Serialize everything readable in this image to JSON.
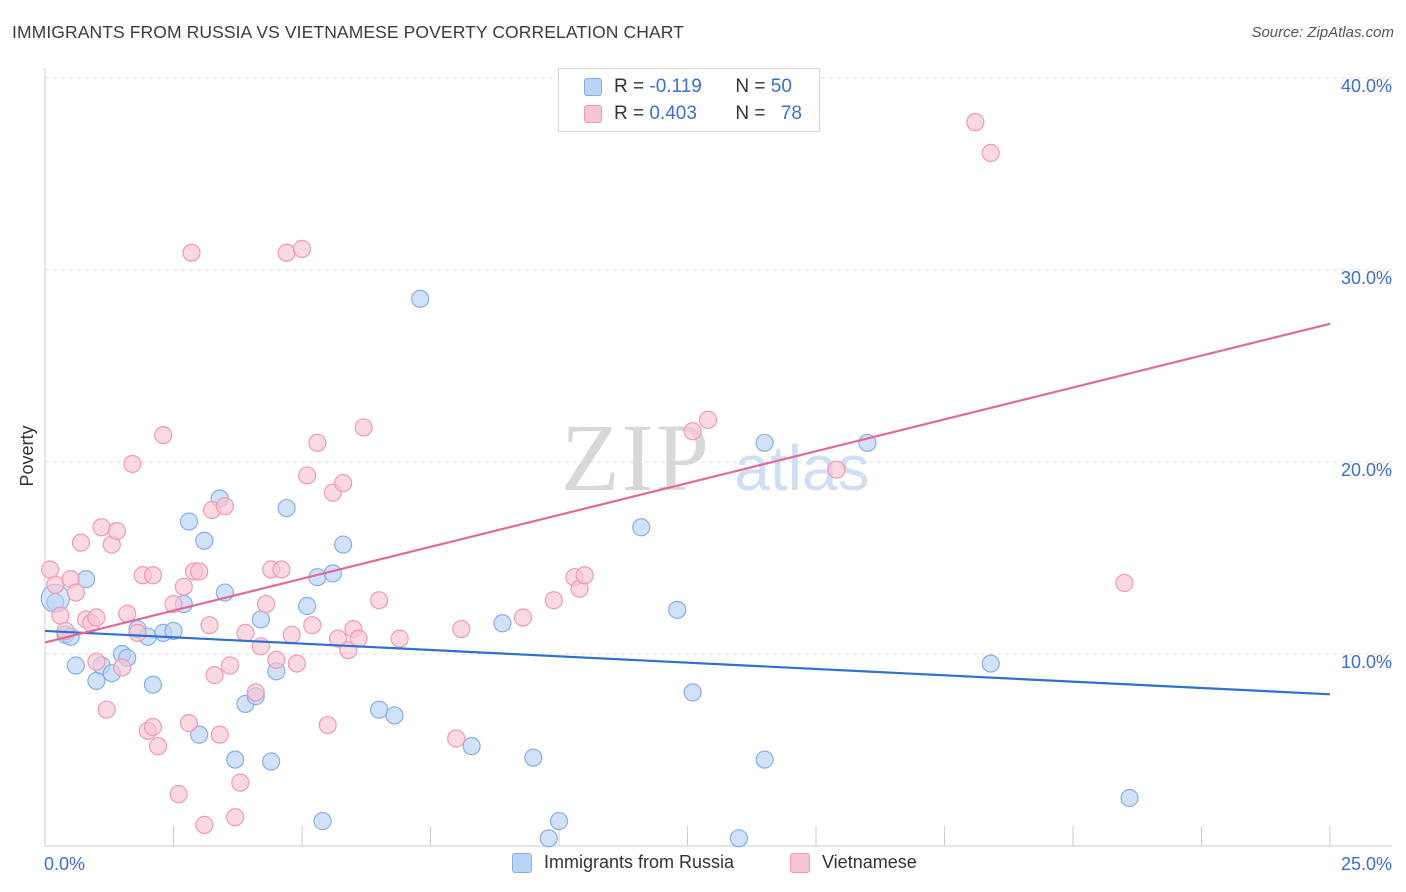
{
  "title": "IMMIGRANTS FROM RUSSIA VS VIETNAMESE POVERTY CORRELATION CHART",
  "source": "Source: ZipAtlas.com",
  "colors": {
    "russia_fill": "#b9d3f5",
    "russia_stroke": "#86aee8",
    "russia_line": "#3070d0",
    "viet_fill": "#f7c4d3",
    "viet_stroke": "#ee9ab4",
    "viet_line": "#e06a94",
    "axis_text": "#3b6fcf",
    "grid": "#dddddd"
  },
  "legend": {
    "rows": [
      {
        "r_label": "R = ",
        "r_value": "-0.119",
        "n_label": "N = ",
        "n_value": "50"
      },
      {
        "r_label": "R = ",
        "r_value": "0.403",
        "n_label": "N = ",
        "n_value": "78"
      }
    ]
  },
  "watermark": {
    "zip": "ZIP",
    "atlas": "atlas"
  },
  "chart_data": {
    "type": "scatter",
    "title": "IMMIGRANTS FROM RUSSIA VS VIETNAMESE POVERTY CORRELATION CHART",
    "xlabel": "",
    "ylabel": "Poverty",
    "xlim": [
      0,
      25
    ],
    "ylim": [
      0,
      40
    ],
    "x_tick_labels": [
      "0.0%",
      "25.0%"
    ],
    "y_ticks": [
      10,
      20,
      30,
      40
    ],
    "y_tick_labels": [
      "10.0%",
      "20.0%",
      "30.0%",
      "40.0%"
    ],
    "grid": true,
    "legend_position": "top-center",
    "series": [
      {
        "name": "Immigrants from Russia",
        "r": -0.119,
        "n": 50,
        "trend": {
          "x": [
            0,
            25
          ],
          "y": [
            11.2,
            7.9
          ]
        },
        "points": [
          [
            0.2,
            12.7
          ],
          [
            0.4,
            11.0
          ],
          [
            0.5,
            10.9
          ],
          [
            0.6,
            9.4
          ],
          [
            0.8,
            13.9
          ],
          [
            1.0,
            8.6
          ],
          [
            1.1,
            9.4
          ],
          [
            1.3,
            9.0
          ],
          [
            1.5,
            10.0
          ],
          [
            1.6,
            9.8
          ],
          [
            1.8,
            11.3
          ],
          [
            2.0,
            10.9
          ],
          [
            2.1,
            8.4
          ],
          [
            2.3,
            11.1
          ],
          [
            2.5,
            11.2
          ],
          [
            2.7,
            12.6
          ],
          [
            2.8,
            16.9
          ],
          [
            3.0,
            5.8
          ],
          [
            3.1,
            15.9
          ],
          [
            3.4,
            18.1
          ],
          [
            3.5,
            13.2
          ],
          [
            3.7,
            4.5
          ],
          [
            3.9,
            7.4
          ],
          [
            4.1,
            7.8
          ],
          [
            4.2,
            11.8
          ],
          [
            4.4,
            4.4
          ],
          [
            4.5,
            9.1
          ],
          [
            4.7,
            17.6
          ],
          [
            5.1,
            12.5
          ],
          [
            5.3,
            14.0
          ],
          [
            5.4,
            1.3
          ],
          [
            5.6,
            14.2
          ],
          [
            5.8,
            15.7
          ],
          [
            6.5,
            7.1
          ],
          [
            6.8,
            6.8
          ],
          [
            7.3,
            28.5
          ],
          [
            8.3,
            5.2
          ],
          [
            8.9,
            11.6
          ],
          [
            9.5,
            4.6
          ],
          [
            9.8,
            0.4
          ],
          [
            10.0,
            1.3
          ],
          [
            11.6,
            16.6
          ],
          [
            12.3,
            12.3
          ],
          [
            12.6,
            8.0
          ],
          [
            13.5,
            0.4
          ],
          [
            14.0,
            21.0
          ],
          [
            14.0,
            4.5
          ],
          [
            16.0,
            21.0
          ],
          [
            18.4,
            9.5
          ],
          [
            21.1,
            2.5
          ]
        ]
      },
      {
        "name": "Vietnamese",
        "r": 0.403,
        "n": 78,
        "trend": {
          "x": [
            0,
            25
          ],
          "y": [
            10.6,
            27.2
          ]
        },
        "points": [
          [
            0.1,
            14.4
          ],
          [
            0.2,
            13.6
          ],
          [
            0.3,
            12.0
          ],
          [
            0.4,
            11.2
          ],
          [
            0.5,
            13.9
          ],
          [
            0.6,
            13.2
          ],
          [
            0.7,
            15.8
          ],
          [
            0.8,
            11.8
          ],
          [
            0.9,
            11.6
          ],
          [
            1.0,
            11.9
          ],
          [
            1.1,
            16.6
          ],
          [
            1.2,
            7.1
          ],
          [
            1.3,
            15.7
          ],
          [
            1.4,
            16.4
          ],
          [
            1.5,
            9.3
          ],
          [
            1.6,
            12.1
          ],
          [
            1.7,
            19.9
          ],
          [
            1.8,
            11.1
          ],
          [
            1.9,
            14.1
          ],
          [
            2.0,
            6.0
          ],
          [
            2.1,
            14.1
          ],
          [
            2.2,
            5.2
          ],
          [
            2.3,
            21.4
          ],
          [
            2.5,
            12.6
          ],
          [
            2.6,
            2.7
          ],
          [
            2.7,
            13.5
          ],
          [
            2.8,
            6.4
          ],
          [
            2.85,
            30.9
          ],
          [
            2.9,
            14.3
          ],
          [
            3.1,
            1.1
          ],
          [
            3.2,
            11.5
          ],
          [
            3.25,
            17.5
          ],
          [
            3.3,
            8.9
          ],
          [
            3.4,
            5.8
          ],
          [
            3.5,
            17.7
          ],
          [
            3.6,
            9.4
          ],
          [
            3.7,
            1.5
          ],
          [
            3.8,
            3.3
          ],
          [
            3.9,
            11.1
          ],
          [
            4.1,
            8.0
          ],
          [
            4.2,
            10.4
          ],
          [
            4.3,
            12.6
          ],
          [
            4.4,
            14.4
          ],
          [
            4.5,
            9.7
          ],
          [
            4.6,
            14.4
          ],
          [
            4.7,
            30.9
          ],
          [
            4.8,
            11.0
          ],
          [
            4.9,
            9.5
          ],
          [
            5.0,
            31.1
          ],
          [
            5.1,
            19.3
          ],
          [
            5.2,
            11.5
          ],
          [
            5.3,
            21.0
          ],
          [
            5.5,
            6.3
          ],
          [
            5.6,
            18.4
          ],
          [
            5.7,
            10.8
          ],
          [
            5.8,
            18.9
          ],
          [
            5.9,
            10.2
          ],
          [
            6.0,
            11.3
          ],
          [
            6.1,
            10.8
          ],
          [
            6.2,
            21.8
          ],
          [
            6.5,
            12.8
          ],
          [
            6.9,
            10.8
          ],
          [
            8.0,
            5.6
          ],
          [
            8.1,
            11.3
          ],
          [
            9.3,
            11.9
          ],
          [
            9.9,
            12.8
          ],
          [
            10.3,
            14.0
          ],
          [
            10.4,
            13.4
          ],
          [
            10.5,
            14.1
          ],
          [
            12.6,
            21.6
          ],
          [
            12.9,
            22.2
          ],
          [
            15.4,
            19.6
          ],
          [
            18.1,
            37.7
          ],
          [
            18.4,
            36.1
          ],
          [
            21.0,
            13.7
          ],
          [
            1.0,
            9.6
          ],
          [
            2.1,
            6.2
          ],
          [
            3.0,
            14.3
          ]
        ]
      }
    ]
  }
}
